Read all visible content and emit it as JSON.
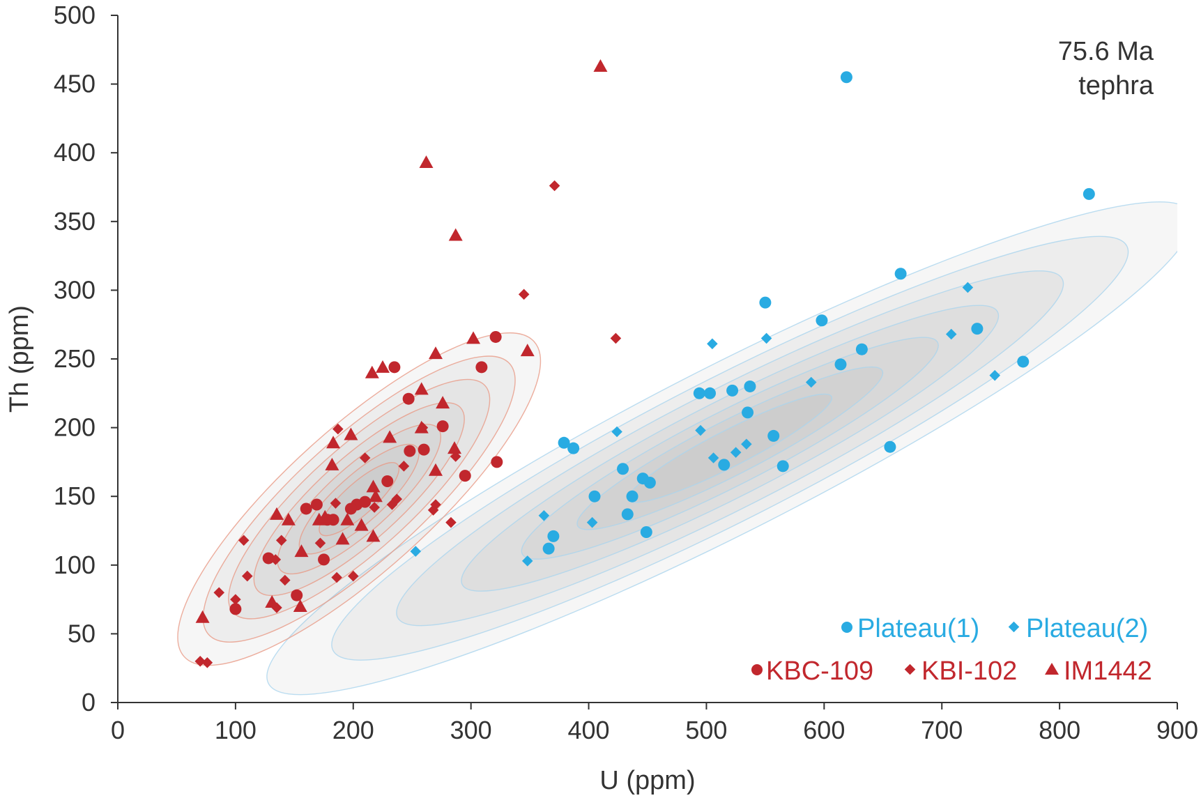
{
  "chart_data": {
    "type": "scatter",
    "xlabel": "U (ppm)",
    "ylabel": "Th (ppm)",
    "xlim": [
      0,
      900
    ],
    "ylim": [
      0,
      500
    ],
    "xticks": [
      "0",
      "100",
      "200",
      "300",
      "400",
      "500",
      "600",
      "700",
      "800",
      "900"
    ],
    "yticks": [
      "0",
      "50",
      "100",
      "150",
      "200",
      "250",
      "300",
      "350",
      "400",
      "450",
      "500"
    ],
    "annotation": [
      "75.6 Ma",
      "tephra"
    ],
    "grid": false,
    "legend_position": "bottom-right",
    "colors": {
      "plateau": "#29abe2",
      "kb": "#c1272d",
      "contour_fill": "#9a9a9d",
      "contour_blue_line": "#aad4ee",
      "contour_red_line": "#e89a86"
    },
    "series": [
      {
        "name": "Plateau(1)",
        "marker": "circle",
        "color": "#29abe2",
        "x": [
          619,
          825,
          665,
          550,
          598,
          730,
          632,
          769,
          614,
          494,
          503,
          522,
          537,
          535,
          557,
          379,
          387,
          656,
          565,
          515,
          429,
          446,
          452,
          437,
          405,
          433,
          449,
          370,
          366
        ],
        "y": [
          455,
          370,
          312,
          291,
          278,
          272,
          257,
          248,
          246,
          225,
          225,
          227,
          230,
          211,
          194,
          189,
          185,
          186,
          172,
          173,
          170,
          163,
          160,
          150,
          150,
          137,
          124,
          121,
          112
        ]
      },
      {
        "name": "Plateau(2)",
        "marker": "diamond",
        "color": "#29abe2",
        "x": [
          722,
          708,
          745,
          551,
          505,
          589,
          424,
          495,
          534,
          525,
          506,
          362,
          403,
          253,
          348
        ],
        "y": [
          302,
          268,
          238,
          265,
          261,
          233,
          197,
          198,
          188,
          182,
          178,
          136,
          131,
          110,
          103
        ]
      },
      {
        "name": "KBC-109",
        "marker": "circle",
        "color": "#c1272d",
        "x": [
          235,
          321,
          309,
          247,
          276,
          260,
          248,
          322,
          295,
          229,
          169,
          160,
          203,
          198,
          210,
          178,
          183,
          128,
          175,
          152,
          100
        ],
        "y": [
          244,
          266,
          244,
          221,
          201,
          184,
          183,
          175,
          165,
          161,
          144,
          141,
          144,
          141,
          146,
          133,
          133,
          105,
          104,
          78,
          68
        ]
      },
      {
        "name": "KBI-102",
        "marker": "diamond",
        "color": "#c1272d",
        "x": [
          371,
          345,
          423,
          187,
          210,
          259,
          243,
          287,
          218,
          237,
          233,
          270,
          268,
          283,
          185,
          107,
          139,
          134,
          172,
          110,
          142,
          200,
          186,
          86,
          100,
          135,
          70,
          76
        ],
        "y": [
          376,
          297,
          265,
          199,
          178,
          200,
          172,
          179,
          142,
          148,
          144,
          144,
          140,
          131,
          145,
          118,
          118,
          104,
          116,
          92,
          89,
          92,
          91,
          80,
          75,
          69,
          30,
          29
        ],
        "marker_note": "diamond"
      },
      {
        "name": "IM1442",
        "marker": "triangle",
        "color": "#c1272d",
        "x": [
          410,
          262,
          287,
          302,
          348,
          270,
          216,
          225,
          258,
          276,
          231,
          183,
          198,
          258,
          286,
          182,
          270,
          217,
          219,
          135,
          145,
          195,
          171,
          176,
          191,
          207,
          217,
          156,
          131,
          155,
          72
        ],
        "y": [
          463,
          393,
          340,
          265,
          256,
          254,
          240,
          244,
          228,
          218,
          193,
          189,
          195,
          200,
          185,
          173,
          169,
          157,
          150,
          137,
          133,
          133,
          133,
          135,
          119,
          129,
          121,
          110,
          73,
          70,
          62
        ]
      }
    ]
  }
}
